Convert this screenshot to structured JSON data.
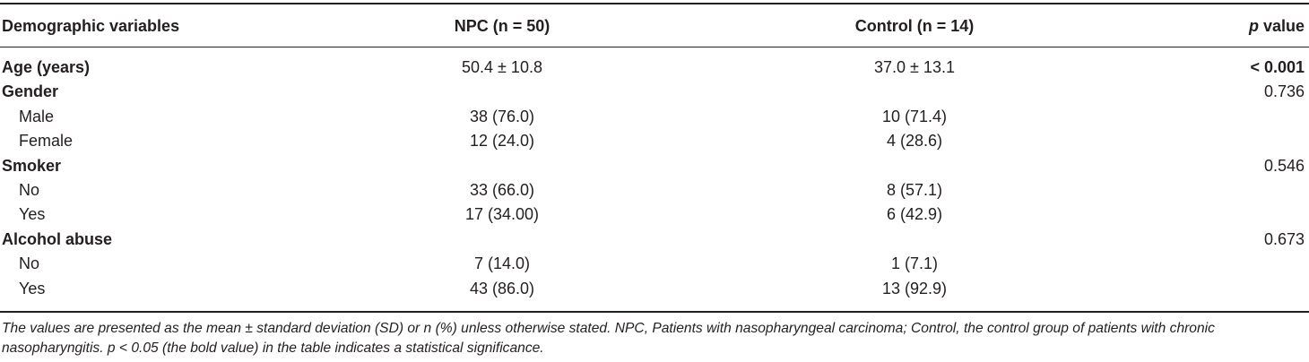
{
  "table": {
    "headers": {
      "label": "Demographic variables",
      "npc": "NPC (n = 50)",
      "control": "Control (n = 14)",
      "p_italic": "p",
      "p_rest": " value"
    },
    "rows": [
      {
        "label": "Age (years)",
        "npc": "50.4 ± 10.8",
        "control": "37.0 ± 13.1",
        "p": "< 0.001",
        "type": "section",
        "p_bold": true
      },
      {
        "label": "Gender",
        "npc": "",
        "control": "",
        "p": "0.736",
        "type": "section",
        "p_bold": false
      },
      {
        "label": "Male",
        "npc": "38 (76.0)",
        "control": "10 (71.4)",
        "p": "",
        "type": "sub",
        "p_bold": false
      },
      {
        "label": "Female",
        "npc": "12 (24.0)",
        "control": "4 (28.6)",
        "p": "",
        "type": "sub",
        "p_bold": false
      },
      {
        "label": "Smoker",
        "npc": "",
        "control": "",
        "p": "0.546",
        "type": "section",
        "p_bold": false
      },
      {
        "label": "No",
        "npc": "33 (66.0)",
        "control": "8 (57.1)",
        "p": "",
        "type": "sub",
        "p_bold": false
      },
      {
        "label": "Yes",
        "npc": "17 (34.00)",
        "control": "6 (42.9)",
        "p": "",
        "type": "sub",
        "p_bold": false
      },
      {
        "label": "Alcohol abuse",
        "npc": "",
        "control": "",
        "p": "0.673",
        "type": "section",
        "p_bold": false
      },
      {
        "label": "No",
        "npc": "7 (14.0)",
        "control": "1 (7.1)",
        "p": "",
        "type": "sub",
        "p_bold": false
      },
      {
        "label": "Yes",
        "npc": "43 (86.0)",
        "control": "13 (92.9)",
        "p": "",
        "type": "sub",
        "p_bold": false
      }
    ],
    "footnote": "The values are presented as the mean ± standard deviation (SD) or n (%) unless otherwise stated. NPC, Patients with nasopharyngeal carcinoma; Control, the control group of patients with chronic nasopharyngitis. p < 0.05 (the bold value) in the table indicates a statistical significance."
  }
}
